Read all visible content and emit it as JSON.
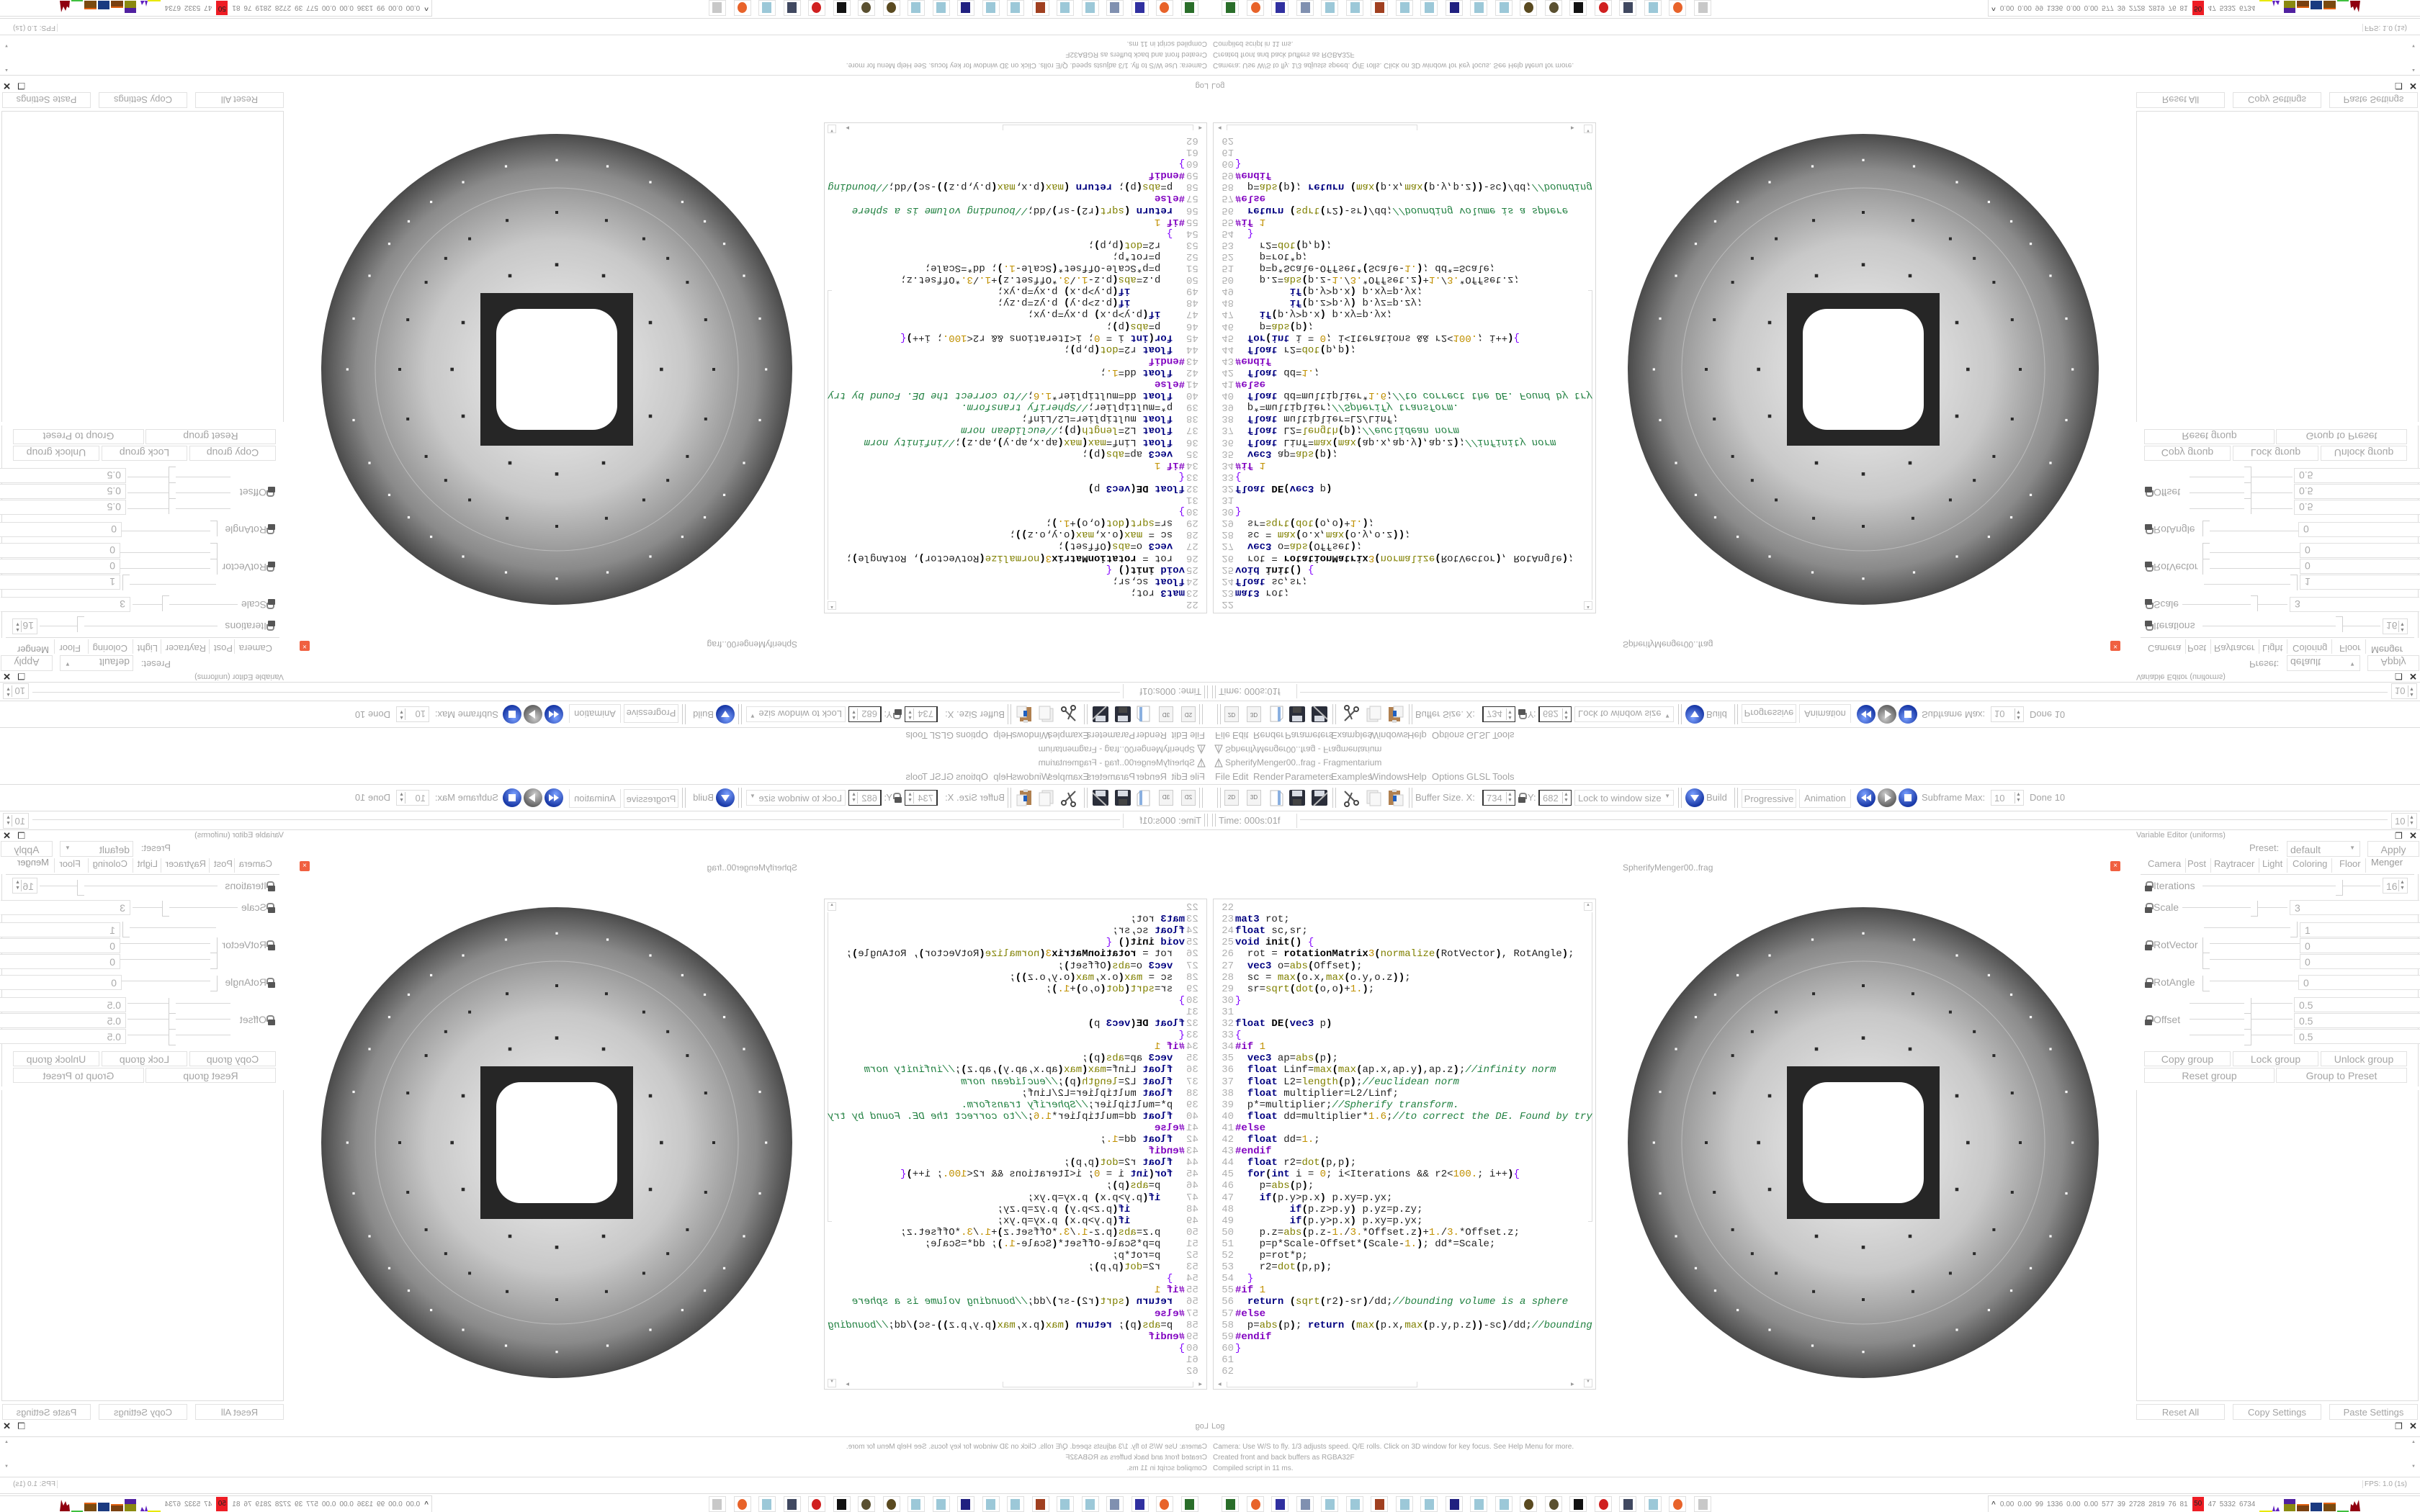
{
  "window": {
    "title": "SpherifyMenger00..frag - Fragmentarium"
  },
  "menu": [
    "File",
    "Edit",
    "Render",
    "Parameters",
    "Examples",
    "Windows",
    "Help",
    "Options",
    "GLSL Tools"
  ],
  "toolbar": {
    "icons": [
      "2d-icon",
      "3d-icon",
      "open-file-icon",
      "save-icon",
      "save-as-icon",
      "cut-icon",
      "copy-icon",
      "paste-icon"
    ],
    "icon_labels": {
      "two_d": "2D",
      "three_d": "3D"
    },
    "buffer_label": "Buffer Size. X:",
    "buffer_x": "734",
    "y_label": "Y:",
    "buffer_y": "682",
    "lock_combo": "Lock to window size",
    "build": "Build",
    "progressive": "Progressive",
    "animation": "Animation",
    "subframe_label": "Subframe Max:",
    "subframe_value": "10",
    "done": "Done 10"
  },
  "timeline": {
    "time": "Time: 000s:01f",
    "value": "10"
  },
  "editor": {
    "filename": "SpherifyMenger00..frag",
    "lines": [
      {
        "n": "22",
        "code": ""
      },
      {
        "n": "23",
        "code": "mat3 rot;"
      },
      {
        "n": "24",
        "code": "float sc,sr;"
      },
      {
        "n": "25",
        "code": "void init() {"
      },
      {
        "n": "26",
        "code": "  rot = rotationMatrix3(normalize(RotVector), RotAngle);"
      },
      {
        "n": "27",
        "code": "  vec3 o=abs(Offset);"
      },
      {
        "n": "28",
        "code": "  sc = max(o.x,max(o.y,o.z));"
      },
      {
        "n": "29",
        "code": "  sr=sqrt(dot(o,o)+1.);"
      },
      {
        "n": "30",
        "code": "}"
      },
      {
        "n": "31",
        "code": ""
      },
      {
        "n": "32",
        "code": "float DE(vec3 p)"
      },
      {
        "n": "33",
        "code": "{"
      },
      {
        "n": "34",
        "code": "#if 1"
      },
      {
        "n": "35",
        "code": "  vec3 ap=abs(p);"
      },
      {
        "n": "36",
        "code": "  float Linf=max(max(ap.x,ap.y),ap.z);//infinity norm"
      },
      {
        "n": "37",
        "code": "  float L2=length(p);//euclidean norm"
      },
      {
        "n": "38",
        "code": "  float multiplier=L2/Linf;"
      },
      {
        "n": "39",
        "code": "  p*=multiplier;//Spherify transform."
      },
      {
        "n": "40",
        "code": "  float dd=multiplier*1.6;//to correct the DE. Found by try"
      },
      {
        "n": "41",
        "code": "#else"
      },
      {
        "n": "42",
        "code": "  float dd=1.;"
      },
      {
        "n": "43",
        "code": "#endif"
      },
      {
        "n": "44",
        "code": "  float r2=dot(p,p);"
      },
      {
        "n": "45",
        "code": "  for(int i = 0; i<Iterations && r2<100.; i++){"
      },
      {
        "n": "46",
        "code": "    p=abs(p);"
      },
      {
        "n": "47",
        "code": "    if(p.y>p.x) p.xy=p.yx;"
      },
      {
        "n": "48",
        "code": "         if(p.z>p.y) p.yz=p.zy;"
      },
      {
        "n": "49",
        "code": "         if(p.y>p.x) p.xy=p.yx;"
      },
      {
        "n": "50",
        "code": "    p.z=abs(p.z-1./3.*Offset.z)+1./3.*Offset.z;"
      },
      {
        "n": "51",
        "code": "    p=p*Scale-Offset*(Scale-1.); dd*=Scale;"
      },
      {
        "n": "52",
        "code": "    p=rot*p;"
      },
      {
        "n": "53",
        "code": "    r2=dot(p,p);"
      },
      {
        "n": "54",
        "code": "  }"
      },
      {
        "n": "55",
        "code": "#if 1"
      },
      {
        "n": "56",
        "code": "  return (sqrt(r2)-sr)/dd;//bounding volume is a sphere"
      },
      {
        "n": "57",
        "code": "#else"
      },
      {
        "n": "58",
        "code": "  p=abs(p); return (max(p.x,max(p.y,p.z))-sc)/dd;//bounding"
      },
      {
        "n": "59",
        "code": "#endif"
      },
      {
        "n": "60",
        "code": "}"
      },
      {
        "n": "61",
        "code": ""
      },
      {
        "n": "62",
        "code": ""
      }
    ]
  },
  "variable_editor": {
    "title": "Variable Editor (uniforms)",
    "preset_label": "Preset:",
    "preset": "default",
    "apply": "Apply",
    "tabs": [
      "Camera",
      "Post",
      "Raytracer",
      "Light",
      "Coloring",
      "Floor",
      "Menger"
    ],
    "active_tab": "Menger",
    "params": {
      "iterations": {
        "label": "Iterations",
        "value": "16"
      },
      "scale": {
        "label": "Scale",
        "value": "3"
      },
      "rotvector": {
        "label": "RotVector",
        "values": [
          "1",
          "0",
          "0"
        ]
      },
      "rotangle": {
        "label": "RotAngle",
        "value": "0"
      },
      "offset": {
        "label": "Offset",
        "values": [
          "0.5",
          "0.5",
          "0.5"
        ]
      }
    },
    "group_buttons": [
      "Copy group",
      "Lock group",
      "Unlock group",
      "Reset group",
      "Group to Preset"
    ],
    "settings_buttons": [
      "Reset All",
      "Copy Settings",
      "Paste Settings"
    ]
  },
  "log": {
    "title": "Log",
    "lines": [
      "Camera: Use W/S to fly. 1/3 adjusts speed. Q/E rolls. Click on 3D window for key focus. See Help Menu for more.",
      "Created front and back buffers as RGBA32F",
      "Compiled script in 11 ms."
    ]
  },
  "status": {
    "fps": "FPS: 1.0 (1s)"
  },
  "taskbar": {
    "icons": [
      {
        "name": "terminal-icon",
        "color": "#2a6e2a"
      },
      {
        "name": "firefox-icon",
        "color": "#e8632a"
      },
      {
        "name": "floppy-64-icon",
        "color": "#3030a0"
      },
      {
        "name": "scroll-icon",
        "color": "#8090b0"
      },
      {
        "name": "notepad-icon",
        "color": "#9cc8d8"
      },
      {
        "name": "notepad-icon",
        "color": "#9cc8d8"
      },
      {
        "name": "bug-icon",
        "color": "#a04020"
      },
      {
        "name": "notepad-icon",
        "color": "#9cc8d8"
      },
      {
        "name": "notepad-icon",
        "color": "#9cc8d8"
      },
      {
        "name": "jpg-icon",
        "color": "#202080"
      },
      {
        "name": "notepad-icon",
        "color": "#9cc8d8"
      },
      {
        "name": "notepad-icon",
        "color": "#9cc8d8"
      },
      {
        "name": "coin-icon",
        "color": "#5a4a20"
      },
      {
        "name": "coin-icon",
        "color": "#5a5030"
      },
      {
        "name": "wolf-icon",
        "color": "#111111"
      },
      {
        "name": "red-gear-icon",
        "color": "#d02020"
      },
      {
        "name": "monitor-icon",
        "color": "#404860"
      },
      {
        "name": "notepad-icon",
        "color": "#9cc8d8"
      },
      {
        "name": "firefox-icon",
        "color": "#e8632a"
      },
      {
        "name": "fragmentarium-icon",
        "color": "#c8c8c8"
      }
    ],
    "tray": {
      "chevron": "^",
      "stats": [
        "0.00",
        "0.00",
        "99",
        "1336",
        "0.00",
        "0.00",
        "577",
        "39",
        "2728",
        "2819",
        "76",
        "81"
      ],
      "highlight": "50",
      "stats_after": [
        "47",
        "5332",
        "6734"
      ],
      "highlight_color": "#ee1c24"
    }
  },
  "colors": {
    "keyword": "#000080",
    "builtin": "#808000",
    "number": "#c09000",
    "comment": "#208040",
    "preprocessor": "#8000c0",
    "ui_text": "#a4a4a4",
    "button_blue": "#1a3aa8"
  }
}
